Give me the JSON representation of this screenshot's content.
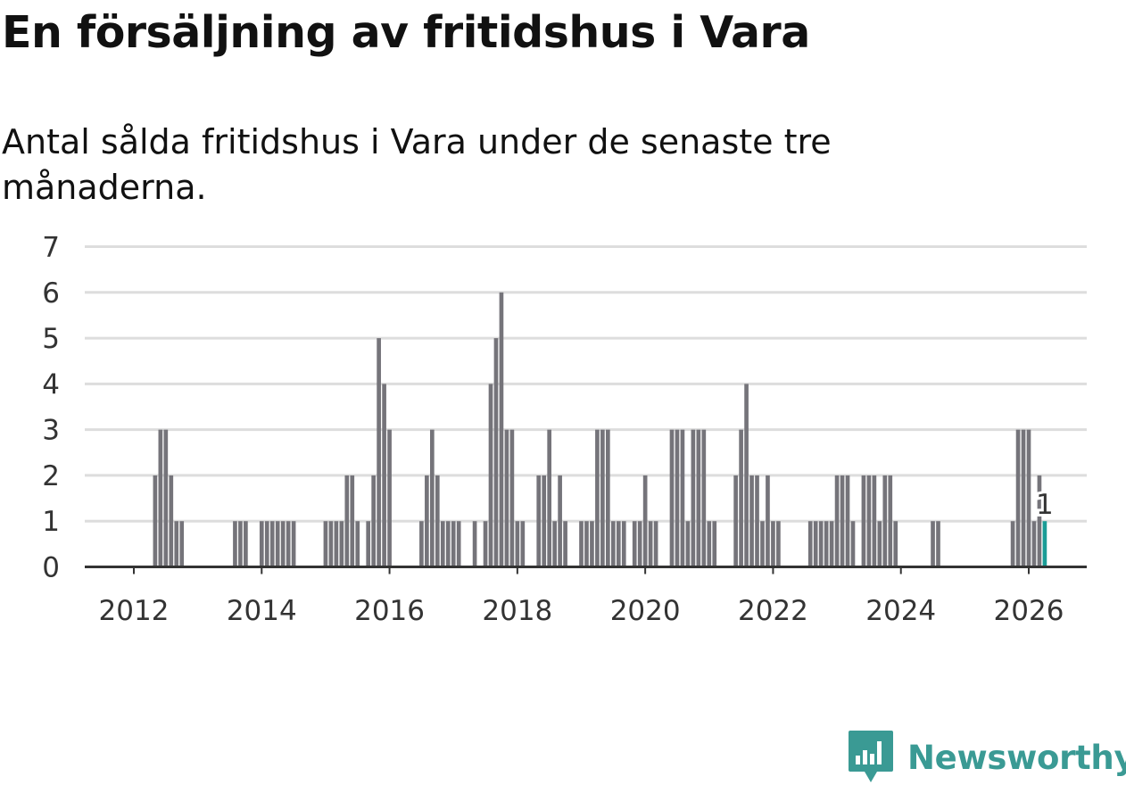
{
  "title": "En försäljning av fritidshus i Vara",
  "subtitle": "Antal sålda fritidshus i Vara under de senaste tre månaderna.",
  "brand": {
    "name": "Newsworthy",
    "color": "#3a9a94",
    "icon": "newsworthy-logo-icon"
  },
  "colors": {
    "bar": "#75747a",
    "highlight": "#1a9c96",
    "grid": "#dddddd",
    "axis": "#333333"
  },
  "chart_data": {
    "type": "bar",
    "title": "En försäljning av fritidshus i Vara",
    "xlabel": "",
    "ylabel": "",
    "ylim": [
      0,
      7
    ],
    "yticks": [
      "0",
      "1",
      "2",
      "3",
      "4",
      "5",
      "6",
      "7"
    ],
    "xticks": [
      "2012",
      "2014",
      "2016",
      "2018",
      "2020",
      "2022",
      "2024",
      "2026"
    ],
    "grid": true,
    "series": [
      {
        "values": [
          {
            "x": "2012-05",
            "y": 2
          },
          {
            "x": "2012-06",
            "y": 3
          },
          {
            "x": "2012-07",
            "y": 3
          },
          {
            "x": "2012-08",
            "y": 2
          },
          {
            "x": "2012-09",
            "y": 1
          },
          {
            "x": "2012-10",
            "y": 1
          },
          {
            "x": "2013-08",
            "y": 1
          },
          {
            "x": "2013-09",
            "y": 1
          },
          {
            "x": "2013-10",
            "y": 1
          },
          {
            "x": "2014-01",
            "y": 1
          },
          {
            "x": "2014-02",
            "y": 1
          },
          {
            "x": "2014-03",
            "y": 1
          },
          {
            "x": "2014-04",
            "y": 1
          },
          {
            "x": "2014-05",
            "y": 1
          },
          {
            "x": "2014-06",
            "y": 1
          },
          {
            "x": "2014-07",
            "y": 1
          },
          {
            "x": "2015-01",
            "y": 1
          },
          {
            "x": "2015-02",
            "y": 1
          },
          {
            "x": "2015-03",
            "y": 1
          },
          {
            "x": "2015-04",
            "y": 1
          },
          {
            "x": "2015-05",
            "y": 2
          },
          {
            "x": "2015-06",
            "y": 2
          },
          {
            "x": "2015-07",
            "y": 1
          },
          {
            "x": "2015-09",
            "y": 1
          },
          {
            "x": "2015-10",
            "y": 2
          },
          {
            "x": "2015-11",
            "y": 5
          },
          {
            "x": "2015-12",
            "y": 4
          },
          {
            "x": "2016-01",
            "y": 3
          },
          {
            "x": "2016-07",
            "y": 1
          },
          {
            "x": "2016-08",
            "y": 2
          },
          {
            "x": "2016-09",
            "y": 3
          },
          {
            "x": "2016-10",
            "y": 2
          },
          {
            "x": "2016-11",
            "y": 1
          },
          {
            "x": "2016-12",
            "y": 1
          },
          {
            "x": "2017-01",
            "y": 1
          },
          {
            "x": "2017-02",
            "y": 1
          },
          {
            "x": "2017-05",
            "y": 1
          },
          {
            "x": "2017-07",
            "y": 1
          },
          {
            "x": "2017-08",
            "y": 4
          },
          {
            "x": "2017-09",
            "y": 5
          },
          {
            "x": "2017-10",
            "y": 6
          },
          {
            "x": "2017-11",
            "y": 3
          },
          {
            "x": "2017-12",
            "y": 3
          },
          {
            "x": "2018-01",
            "y": 1
          },
          {
            "x": "2018-02",
            "y": 1
          },
          {
            "x": "2018-05",
            "y": 2
          },
          {
            "x": "2018-06",
            "y": 2
          },
          {
            "x": "2018-07",
            "y": 3
          },
          {
            "x": "2018-08",
            "y": 1
          },
          {
            "x": "2018-09",
            "y": 2
          },
          {
            "x": "2018-10",
            "y": 1
          },
          {
            "x": "2019-01",
            "y": 1
          },
          {
            "x": "2019-02",
            "y": 1
          },
          {
            "x": "2019-03",
            "y": 1
          },
          {
            "x": "2019-04",
            "y": 3
          },
          {
            "x": "2019-05",
            "y": 3
          },
          {
            "x": "2019-06",
            "y": 3
          },
          {
            "x": "2019-07",
            "y": 1
          },
          {
            "x": "2019-08",
            "y": 1
          },
          {
            "x": "2019-09",
            "y": 1
          },
          {
            "x": "2019-11",
            "y": 1
          },
          {
            "x": "2019-12",
            "y": 1
          },
          {
            "x": "2020-01",
            "y": 2
          },
          {
            "x": "2020-02",
            "y": 1
          },
          {
            "x": "2020-03",
            "y": 1
          },
          {
            "x": "2020-06",
            "y": 3
          },
          {
            "x": "2020-07",
            "y": 3
          },
          {
            "x": "2020-08",
            "y": 3
          },
          {
            "x": "2020-09",
            "y": 1
          },
          {
            "x": "2020-10",
            "y": 3
          },
          {
            "x": "2020-11",
            "y": 3
          },
          {
            "x": "2020-12",
            "y": 3
          },
          {
            "x": "2021-01",
            "y": 1
          },
          {
            "x": "2021-02",
            "y": 1
          },
          {
            "x": "2021-06",
            "y": 2
          },
          {
            "x": "2021-07",
            "y": 3
          },
          {
            "x": "2021-08",
            "y": 4
          },
          {
            "x": "2021-09",
            "y": 2
          },
          {
            "x": "2021-10",
            "y": 2
          },
          {
            "x": "2021-11",
            "y": 1
          },
          {
            "x": "2021-12",
            "y": 2
          },
          {
            "x": "2022-01",
            "y": 1
          },
          {
            "x": "2022-02",
            "y": 1
          },
          {
            "x": "2022-08",
            "y": 1
          },
          {
            "x": "2022-09",
            "y": 1
          },
          {
            "x": "2022-10",
            "y": 1
          },
          {
            "x": "2022-11",
            "y": 1
          },
          {
            "x": "2022-12",
            "y": 1
          },
          {
            "x": "2023-01",
            "y": 2
          },
          {
            "x": "2023-02",
            "y": 2
          },
          {
            "x": "2023-03",
            "y": 2
          },
          {
            "x": "2023-04",
            "y": 1
          },
          {
            "x": "2023-06",
            "y": 2
          },
          {
            "x": "2023-07",
            "y": 2
          },
          {
            "x": "2023-08",
            "y": 2
          },
          {
            "x": "2023-09",
            "y": 1
          },
          {
            "x": "2023-10",
            "y": 2
          },
          {
            "x": "2023-11",
            "y": 2
          },
          {
            "x": "2023-12",
            "y": 1
          },
          {
            "x": "2024-07",
            "y": 1
          },
          {
            "x": "2024-08",
            "y": 1
          },
          {
            "x": "2025-10",
            "y": 1
          },
          {
            "x": "2025-11",
            "y": 3
          },
          {
            "x": "2025-12",
            "y": 3
          },
          {
            "x": "2026-01",
            "y": 3
          },
          {
            "x": "2026-02",
            "y": 1
          },
          {
            "x": "2026-03",
            "y": 2
          },
          {
            "x": "2026-04",
            "y": 1,
            "highlight": true
          }
        ]
      }
    ],
    "annotation": {
      "x": "2026-04",
      "text": "1"
    }
  }
}
